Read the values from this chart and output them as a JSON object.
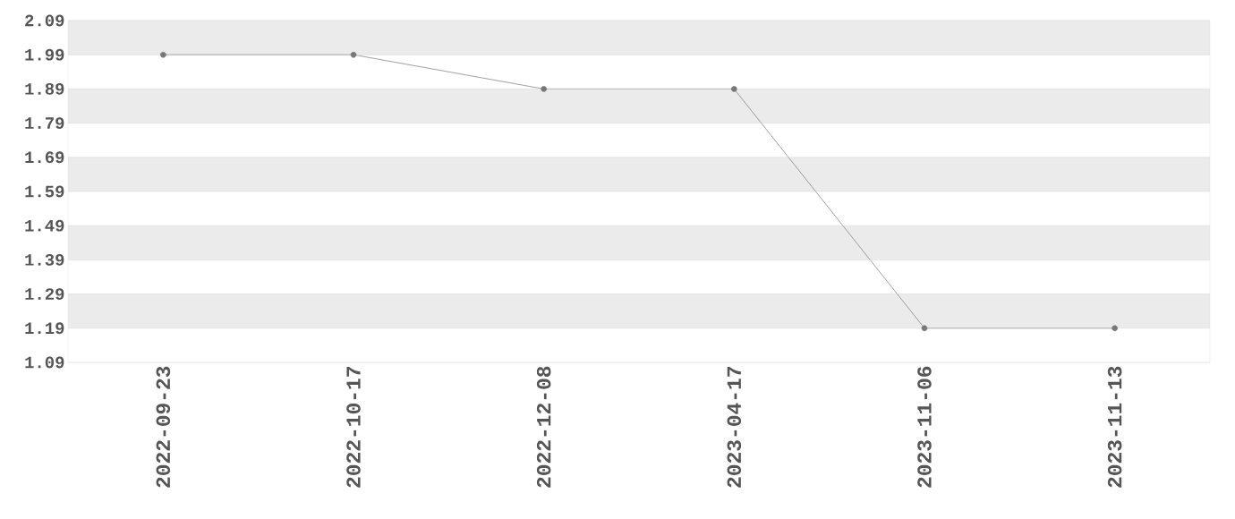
{
  "chart_data": {
    "type": "line",
    "categories": [
      "2022-09-23",
      "2022-10-17",
      "2022-12-08",
      "2023-04-17",
      "2023-11-06",
      "2023-11-13"
    ],
    "values": [
      1.99,
      1.99,
      1.89,
      1.89,
      1.19,
      1.19
    ],
    "color": "#777777",
    "marker": "circle",
    "line_style": "solid",
    "ylim": [
      1.09,
      2.09
    ],
    "yticks": [
      1.09,
      1.19,
      1.29,
      1.39,
      1.49,
      1.59,
      1.69,
      1.79,
      1.89,
      1.99,
      2.09
    ],
    "grid": "y"
  }
}
